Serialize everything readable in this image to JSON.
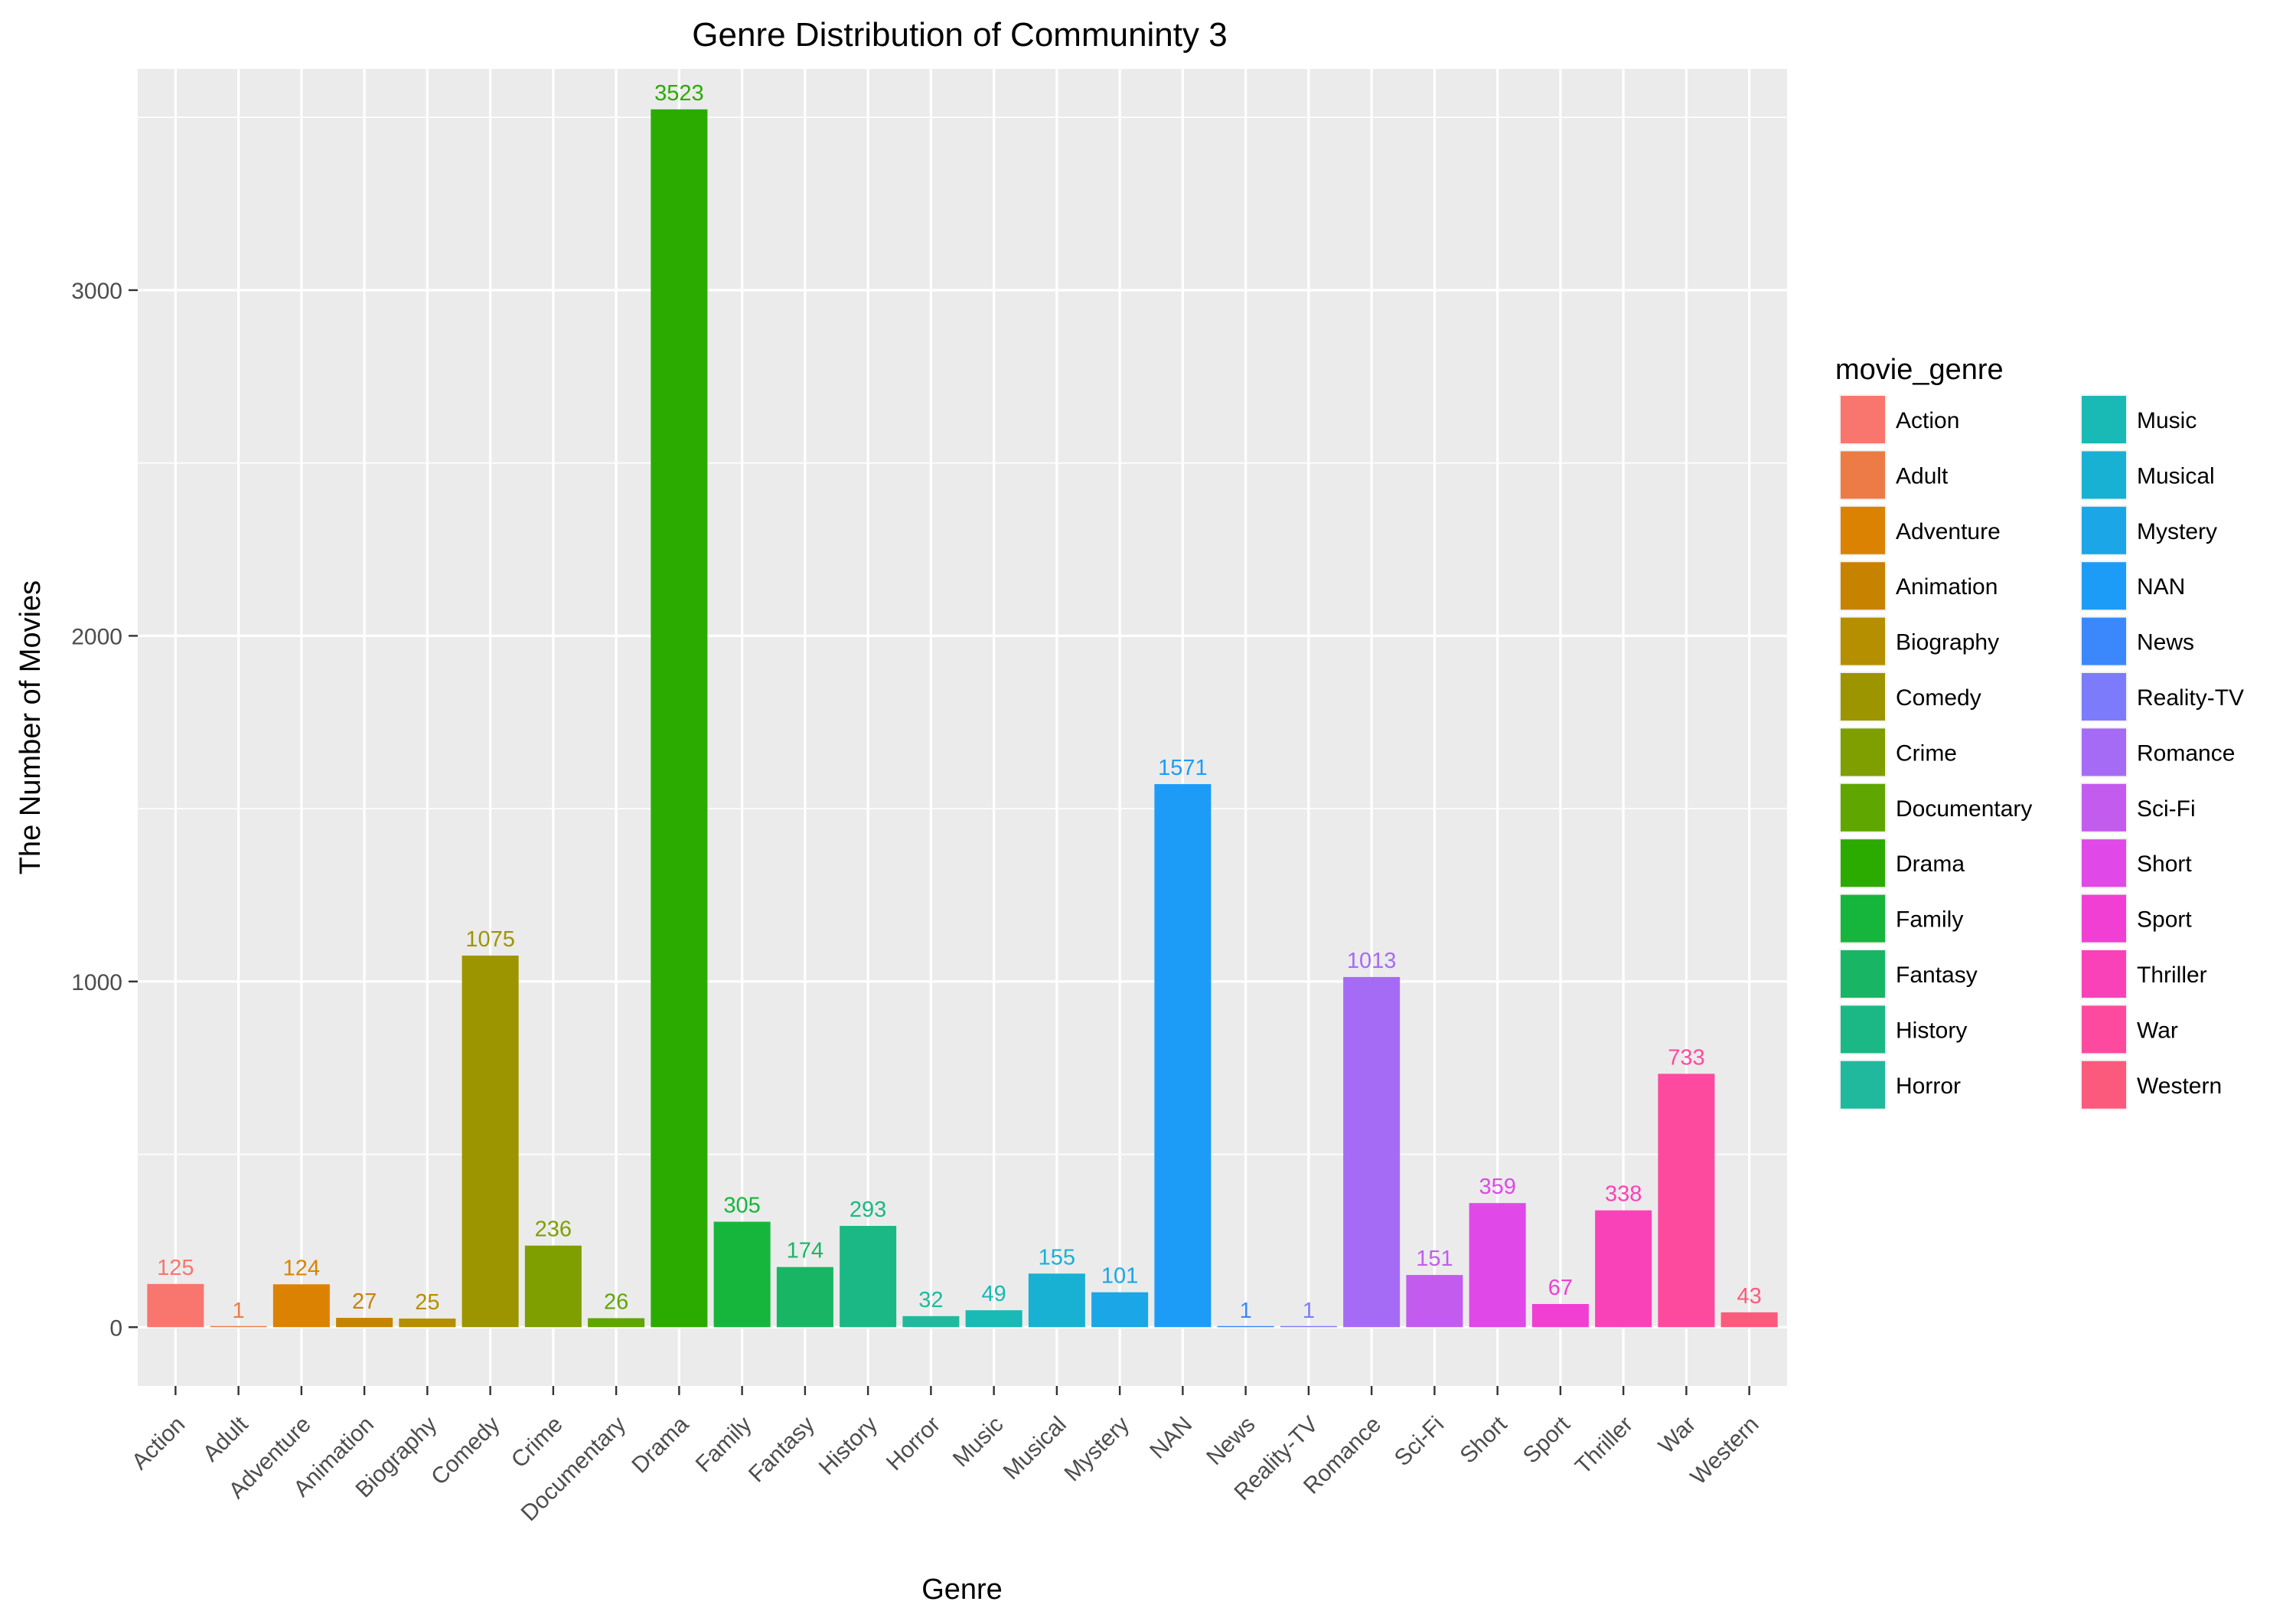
{
  "chart_data": {
    "type": "bar",
    "title": "Genre Distribution of Communinty 3",
    "xlabel": "Genre",
    "ylabel": "The Number of Movies",
    "ylim": [
      -170,
      3640
    ],
    "yticks": [
      0,
      1000,
      2000,
      3000
    ],
    "grid": true,
    "legend_title": "movie_genre",
    "legend_position": "right",
    "categories": [
      "Action",
      "Adult",
      "Adventure",
      "Animation",
      "Biography",
      "Comedy",
      "Crime",
      "Documentary",
      "Drama",
      "Family",
      "Fantasy",
      "History",
      "Horror",
      "Music",
      "Musical",
      "Mystery",
      "NAN",
      "News",
      "Reality-TV",
      "Romance",
      "Sci-Fi",
      "Short",
      "Sport",
      "Thriller",
      "War",
      "Western"
    ],
    "values": [
      125,
      1,
      124,
      27,
      25,
      1075,
      236,
      26,
      3523,
      305,
      174,
      293,
      32,
      49,
      155,
      101,
      1571,
      1,
      1,
      1013,
      151,
      359,
      67,
      338,
      733,
      43
    ],
    "colors": [
      "#F8766D",
      "#EA8331",
      "#D89000",
      "#C09B00",
      "#A3A500",
      "#7CAE00",
      "#39B600",
      "#00BB4E",
      "#00BF7D",
      "#00C1A3",
      "#00BFC4",
      "#00BAE0",
      "#00B0F6",
      "#35A2FF",
      "#9590FF",
      "#C77CFF",
      "#E76BF3",
      "#FA62DB",
      "#FF62BC",
      "#FF6C91",
      "#F8766D",
      "#EA8331",
      "#D89000",
      "#C09B00",
      "#A3A500",
      "#7CAE00"
    ],
    "bar_colors": [
      "#F8766D",
      "#EC7B46",
      "#DB8203",
      "#C78300",
      "#B58F00",
      "#9C9500",
      "#7F9E00",
      "#5FA600",
      "#2BAB00",
      "#16B63C",
      "#18B664",
      "#1BB885",
      "#20B99E",
      "#19B9B5",
      "#18B1D3",
      "#1AA6E7",
      "#1C9CF6",
      "#3A88FB",
      "#7B7BFB",
      "#A66BF5",
      "#C35CEE",
      "#E048E8",
      "#F03FD2",
      "#FA42B8",
      "#FD4A9E",
      "#FC5A7D"
    ]
  }
}
